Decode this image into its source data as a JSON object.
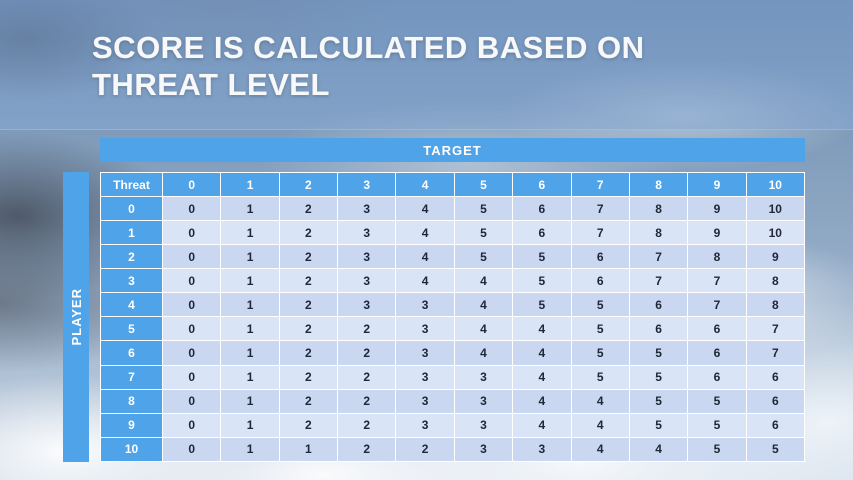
{
  "slide": {
    "title_line1": "SCORE IS CALCULATED BASED ON",
    "title_line2": "THREAT LEVEL"
  },
  "table": {
    "target_label": "TARGET",
    "player_label": "PLAYER",
    "corner_label": "Threat",
    "column_headers": [
      "0",
      "1",
      "2",
      "3",
      "4",
      "5",
      "6",
      "7",
      "8",
      "9",
      "10"
    ],
    "rows": [
      {
        "threat": "0",
        "values": [
          0,
          1,
          2,
          3,
          4,
          5,
          6,
          7,
          8,
          9,
          10
        ]
      },
      {
        "threat": "1",
        "values": [
          0,
          1,
          2,
          3,
          4,
          5,
          6,
          7,
          8,
          9,
          10
        ]
      },
      {
        "threat": "2",
        "values": [
          0,
          1,
          2,
          3,
          4,
          5,
          5,
          6,
          7,
          8,
          9
        ]
      },
      {
        "threat": "3",
        "values": [
          0,
          1,
          2,
          3,
          4,
          4,
          5,
          6,
          7,
          7,
          8
        ]
      },
      {
        "threat": "4",
        "values": [
          0,
          1,
          2,
          3,
          3,
          4,
          5,
          5,
          6,
          7,
          8
        ]
      },
      {
        "threat": "5",
        "values": [
          0,
          1,
          2,
          2,
          3,
          4,
          4,
          5,
          6,
          6,
          7
        ]
      },
      {
        "threat": "6",
        "values": [
          0,
          1,
          2,
          2,
          3,
          4,
          4,
          5,
          5,
          6,
          7
        ]
      },
      {
        "threat": "7",
        "values": [
          0,
          1,
          2,
          2,
          3,
          3,
          4,
          5,
          5,
          6,
          6
        ]
      },
      {
        "threat": "8",
        "values": [
          0,
          1,
          2,
          2,
          3,
          3,
          4,
          4,
          5,
          5,
          6
        ]
      },
      {
        "threat": "9",
        "values": [
          0,
          1,
          2,
          2,
          3,
          3,
          4,
          4,
          5,
          5,
          6
        ]
      },
      {
        "threat": "10",
        "values": [
          0,
          1,
          1,
          2,
          2,
          3,
          3,
          4,
          4,
          5,
          5
        ]
      }
    ]
  },
  "colors": {
    "accent_blue": "#4FA3E8",
    "row_band_dark": "#C9D7F1",
    "row_band_light": "#DAE4F7",
    "cell_text": "#202838",
    "title_text": "#F7F8FA"
  }
}
